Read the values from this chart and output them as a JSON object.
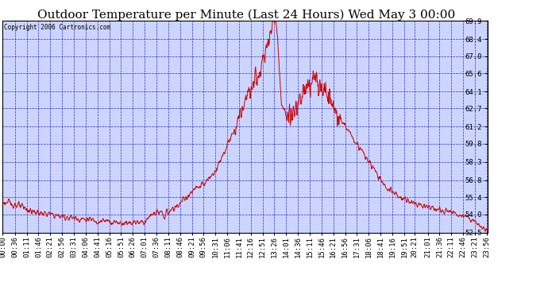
{
  "title": "Outdoor Temperature per Minute (Last 24 Hours) Wed May 3 00:00",
  "copyright": "Copyright 2006 Cartronics.com",
  "ylabel_right_ticks": [
    52.5,
    54.0,
    55.4,
    56.8,
    58.3,
    59.8,
    61.2,
    62.7,
    64.1,
    65.6,
    67.0,
    68.4,
    69.9
  ],
  "ymin": 52.5,
  "ymax": 69.9,
  "line_color": "#cc0000",
  "bg_color": "#ccd5ff",
  "grid_color": "#0000bb",
  "border_color": "#000000",
  "title_fontsize": 11,
  "tick_fontsize": 6.5,
  "copyright_fontsize": 5.5,
  "x_labels": [
    "00:00",
    "00:36",
    "01:11",
    "01:46",
    "02:21",
    "02:56",
    "03:31",
    "04:06",
    "04:41",
    "05:16",
    "05:51",
    "06:26",
    "07:01",
    "07:36",
    "08:11",
    "08:46",
    "09:21",
    "09:56",
    "10:31",
    "11:06",
    "11:41",
    "12:16",
    "12:51",
    "13:26",
    "14:01",
    "14:36",
    "15:11",
    "15:46",
    "16:21",
    "16:56",
    "17:31",
    "18:06",
    "18:41",
    "19:16",
    "19:51",
    "20:21",
    "21:01",
    "21:36",
    "22:11",
    "22:46",
    "23:21",
    "23:56"
  ]
}
